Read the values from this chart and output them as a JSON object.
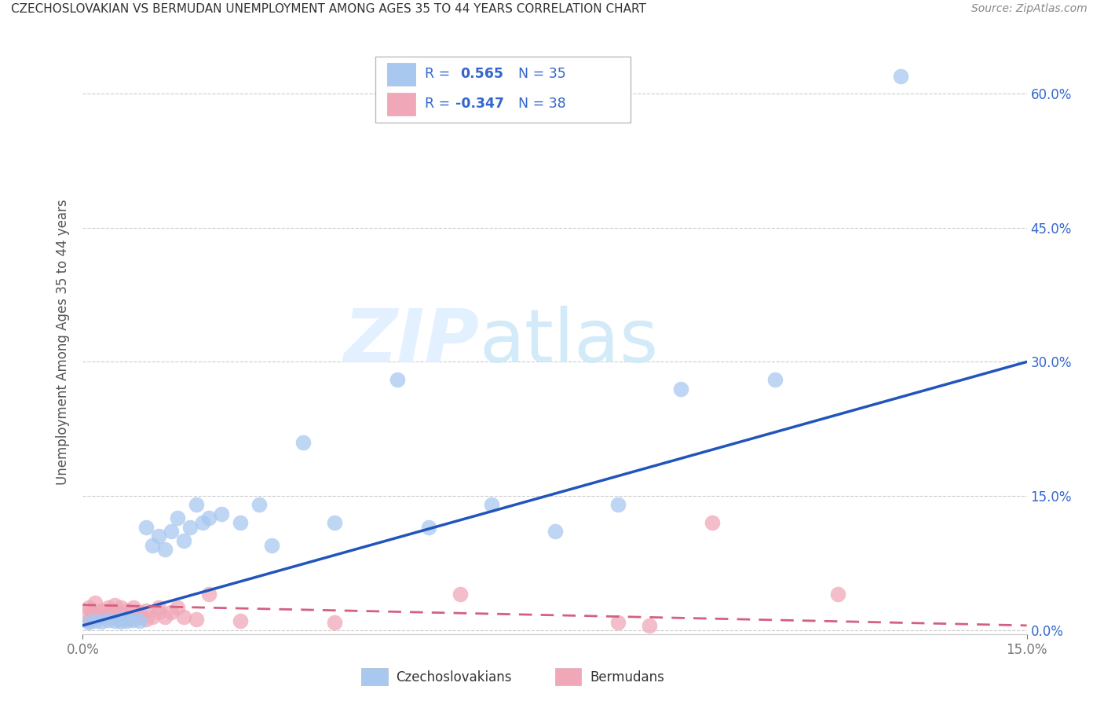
{
  "title": "CZECHOSLOVAKIAN VS BERMUDAN UNEMPLOYMENT AMONG AGES 35 TO 44 YEARS CORRELATION CHART",
  "source": "Source: ZipAtlas.com",
  "ylabel_label": "Unemployment Among Ages 35 to 44 years",
  "legend_label1": "Czechoslovakians",
  "legend_label2": "Bermudans",
  "R1": "0.565",
  "N1": "35",
  "R2": "-0.347",
  "N2": "38",
  "watermark_zip": "ZIP",
  "watermark_atlas": "atlas",
  "blue_color": "#a8c8f0",
  "pink_color": "#f0a8b8",
  "blue_line_color": "#2255bb",
  "pink_line_color": "#d46080",
  "text_color": "#3366cc",
  "grid_color": "#cccccc",
  "xlim": [
    0.0,
    0.15
  ],
  "ylim": [
    -0.005,
    0.65
  ],
  "yticks": [
    0.0,
    0.15,
    0.3,
    0.45,
    0.6
  ],
  "ytick_labels": [
    "0.0%",
    "15.0%",
    "30.0%",
    "45.0%",
    "60.0%"
  ],
  "xticks": [
    0.0,
    0.15
  ],
  "xtick_labels": [
    "0.0%",
    "15.0%"
  ],
  "czecho_x": [
    0.001,
    0.002,
    0.003,
    0.004,
    0.005,
    0.006,
    0.006,
    0.007,
    0.008,
    0.009,
    0.01,
    0.011,
    0.012,
    0.013,
    0.014,
    0.015,
    0.016,
    0.017,
    0.018,
    0.019,
    0.02,
    0.022,
    0.025,
    0.028,
    0.03,
    0.035,
    0.04,
    0.05,
    0.055,
    0.065,
    0.075,
    0.085,
    0.095,
    0.11,
    0.13
  ],
  "czecho_y": [
    0.008,
    0.01,
    0.009,
    0.011,
    0.01,
    0.009,
    0.012,
    0.01,
    0.011,
    0.01,
    0.115,
    0.095,
    0.105,
    0.09,
    0.11,
    0.125,
    0.1,
    0.115,
    0.14,
    0.12,
    0.125,
    0.13,
    0.12,
    0.14,
    0.095,
    0.21,
    0.12,
    0.28,
    0.115,
    0.14,
    0.11,
    0.14,
    0.27,
    0.28,
    0.62
  ],
  "bermuda_x": [
    0.0005,
    0.001,
    0.001,
    0.0015,
    0.002,
    0.002,
    0.003,
    0.003,
    0.004,
    0.004,
    0.005,
    0.005,
    0.006,
    0.006,
    0.007,
    0.007,
    0.008,
    0.008,
    0.009,
    0.009,
    0.01,
    0.01,
    0.011,
    0.012,
    0.012,
    0.013,
    0.014,
    0.015,
    0.016,
    0.018,
    0.02,
    0.025,
    0.04,
    0.06,
    0.085,
    0.09,
    0.1,
    0.12
  ],
  "bermuda_y": [
    0.018,
    0.025,
    0.01,
    0.02,
    0.018,
    0.03,
    0.015,
    0.022,
    0.018,
    0.025,
    0.015,
    0.028,
    0.018,
    0.025,
    0.012,
    0.022,
    0.015,
    0.025,
    0.015,
    0.02,
    0.012,
    0.022,
    0.015,
    0.02,
    0.025,
    0.015,
    0.02,
    0.025,
    0.015,
    0.012,
    0.04,
    0.01,
    0.008,
    0.04,
    0.008,
    0.005,
    0.12,
    0.04
  ],
  "blue_trend_x": [
    0.0,
    0.15
  ],
  "blue_trend_y": [
    0.005,
    0.3
  ],
  "pink_trend_x": [
    0.0,
    0.15
  ],
  "pink_trend_y": [
    0.028,
    0.005
  ]
}
